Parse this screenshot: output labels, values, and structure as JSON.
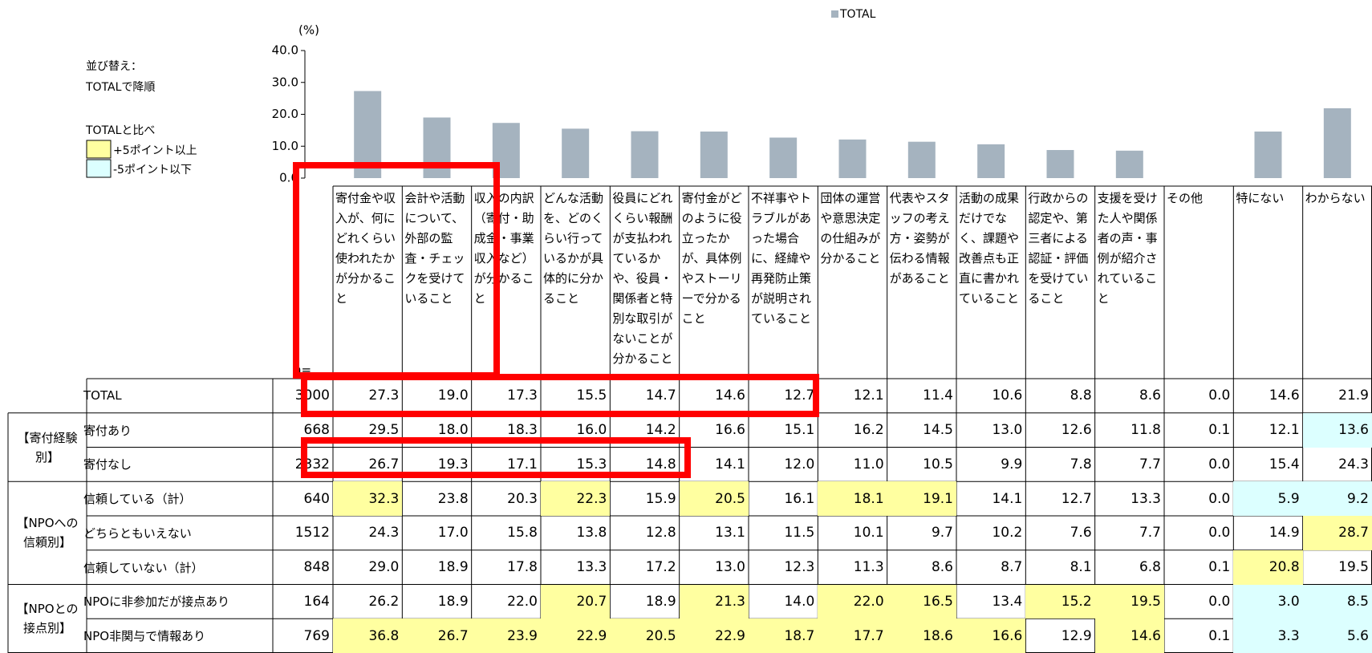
{
  "chart_data": {
    "type": "bar",
    "y_unit": "(%)",
    "categories": [
      "寄付金や収入が、何にどれくらい使われたかが分かること",
      "会計や活動について、外部の監査・チェックを受けていること",
      "収入の内訳（寄付・助成金・事業収入など）が分かること",
      "どんな活動を、どのくらい行っているかが具体的に分かること",
      "役員にどれくらい報酬が支払われているかや、役員・関係者と特別な取引がないことが分かること",
      "寄付金がどのように役立ったかが、具体例やストーリーで分かること",
      "不祥事やトラブルがあった場合に、経緯や再発防止策が説明されていること",
      "団体の運営や意思決定の仕組みが分かること",
      "代表やスタッフの考え方・姿勢が伝わる情報があること",
      "活動の成果だけでなく、課題や改善点も正直に書かれていること",
      "行政からの認定や、第三者による認証・評価を受けていること",
      "支援を受けた人や関係者の声・事例が紹介されていること",
      "その他",
      "特にない",
      "わからない"
    ],
    "series": [
      {
        "name": "TOTAL",
        "color": "#a5b3bf",
        "values": [
          27.3,
          19.0,
          17.3,
          15.5,
          14.7,
          14.6,
          12.7,
          12.1,
          11.4,
          10.6,
          8.8,
          8.6,
          0.0,
          14.6,
          21.9
        ]
      }
    ],
    "ylim": [
      0,
      40
    ],
    "yticks": [
      {
        "value": 0,
        "label": "0.0"
      },
      {
        "value": 10,
        "label": "10.0"
      },
      {
        "value": 20,
        "label": "20.0"
      },
      {
        "value": 30,
        "label": "30.0"
      },
      {
        "value": 40,
        "label": "40.0"
      }
    ]
  },
  "sort_note": [
    "並び替え：",
    "TOTALで降順"
  ],
  "compare": {
    "title": "TOTALと比べ",
    "items": [
      {
        "label": "+5ポイント以上",
        "color": "#ffffa0"
      },
      {
        "label": "-5ポイント以下",
        "color": "#dcffff"
      }
    ]
  },
  "table": {
    "n_label": "n=",
    "total": {
      "label": "TOTAL",
      "n": "3000",
      "cells": [
        "27.3",
        "19.0",
        "17.3",
        "15.5",
        "14.7",
        "14.6",
        "12.7",
        "12.1",
        "11.4",
        "10.6",
        "8.8",
        "8.6",
        "0.0",
        "14.6",
        "21.9"
      ]
    },
    "groups": [
      {
        "label": "【寄付経験別】",
        "rows": [
          {
            "label": "寄付あり",
            "n": "668",
            "cells": [
              "29.5",
              "18.0",
              "18.3",
              "16.0",
              "14.2",
              "16.6",
              "15.1",
              "16.2",
              "14.5",
              "13.0",
              "12.6",
              "11.8",
              "0.1",
              "12.1",
              "13.6"
            ],
            "plus": [],
            "minus": [
              14
            ]
          },
          {
            "label": "寄付なし",
            "n": "2332",
            "cells": [
              "26.7",
              "19.3",
              "17.1",
              "15.3",
              "14.8",
              "14.1",
              "12.0",
              "11.0",
              "10.5",
              "9.9",
              "7.8",
              "7.7",
              "0.0",
              "15.4",
              "24.3"
            ],
            "plus": [],
            "minus": []
          }
        ]
      },
      {
        "label": "【NPOへの信頼別】",
        "rows": [
          {
            "label": "信頼している（計）",
            "n": "640",
            "cells": [
              "32.3",
              "23.8",
              "20.3",
              "22.3",
              "15.9",
              "20.5",
              "16.1",
              "18.1",
              "19.1",
              "14.1",
              "12.7",
              "13.3",
              "0.0",
              "5.9",
              "9.2"
            ],
            "plus": [
              0,
              3,
              5,
              7,
              8
            ],
            "minus": [
              13,
              14
            ]
          },
          {
            "label": "どちらともいえない",
            "n": "1512",
            "cells": [
              "24.3",
              "17.0",
              "15.8",
              "13.8",
              "12.8",
              "13.1",
              "11.5",
              "10.1",
              "9.7",
              "10.2",
              "7.6",
              "7.7",
              "0.0",
              "14.9",
              "28.7"
            ],
            "plus": [
              14
            ],
            "minus": []
          },
          {
            "label": "信頼していない（計）",
            "n": "848",
            "cells": [
              "29.0",
              "18.9",
              "17.8",
              "13.3",
              "17.2",
              "13.0",
              "12.3",
              "11.3",
              "8.6",
              "8.7",
              "8.1",
              "6.8",
              "0.1",
              "20.8",
              "19.5"
            ],
            "plus": [
              13
            ],
            "minus": []
          }
        ]
      },
      {
        "label": "【NPOとの接点別】",
        "rows": [
          {
            "label": "NPOに非参加だが接点あり",
            "n": "164",
            "cells": [
              "26.2",
              "18.9",
              "22.0",
              "20.7",
              "18.9",
              "21.3",
              "14.0",
              "22.0",
              "16.5",
              "13.4",
              "15.2",
              "19.5",
              "0.0",
              "3.0",
              "8.5"
            ],
            "plus": [
              3,
              5,
              7,
              8,
              10,
              11
            ],
            "minus": [
              13,
              14
            ]
          },
          {
            "label": "NPO非関与で情報あり",
            "n": "769",
            "cells": [
              "36.8",
              "26.7",
              "23.9",
              "22.9",
              "20.5",
              "22.9",
              "18.7",
              "17.7",
              "18.6",
              "16.6",
              "12.9",
              "14.6",
              "0.1",
              "3.3",
              "5.6"
            ],
            "plus": [
              0,
              1,
              2,
              3,
              4,
              5,
              6,
              7,
              8,
              9,
              11
            ],
            "minus": [
              13,
              14
            ]
          }
        ]
      }
    ]
  }
}
